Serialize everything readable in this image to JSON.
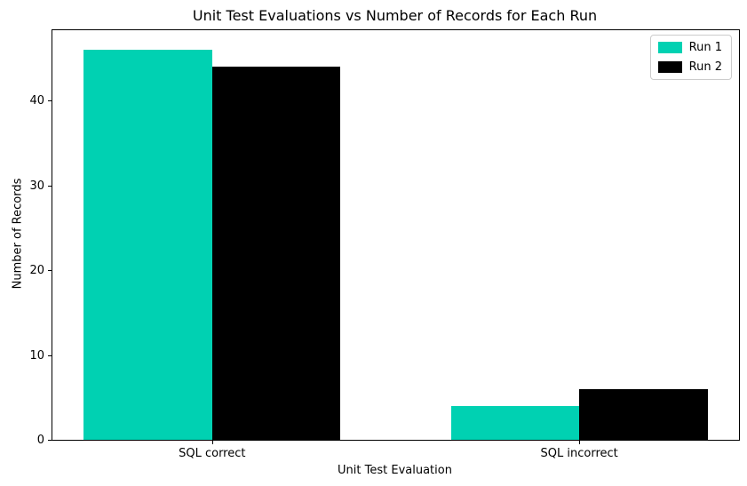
{
  "chart_data": {
    "type": "bar",
    "title": "Unit Test Evaluations vs Number of Records for Each Run",
    "xlabel": "Unit Test Evaluation",
    "ylabel": "Number of Records",
    "categories": [
      "SQL correct",
      "SQL incorrect"
    ],
    "series": [
      {
        "name": "Run 1",
        "color": "#00d1b2",
        "values": [
          46,
          4
        ]
      },
      {
        "name": "Run 2",
        "color": "#000000",
        "values": [
          44,
          6
        ]
      }
    ],
    "yticks": [
      0,
      10,
      20,
      30,
      40
    ],
    "ylim": [
      0,
      48.3
    ],
    "bar_width_fraction": 0.35,
    "grid": false,
    "legend_position": "upper right"
  }
}
